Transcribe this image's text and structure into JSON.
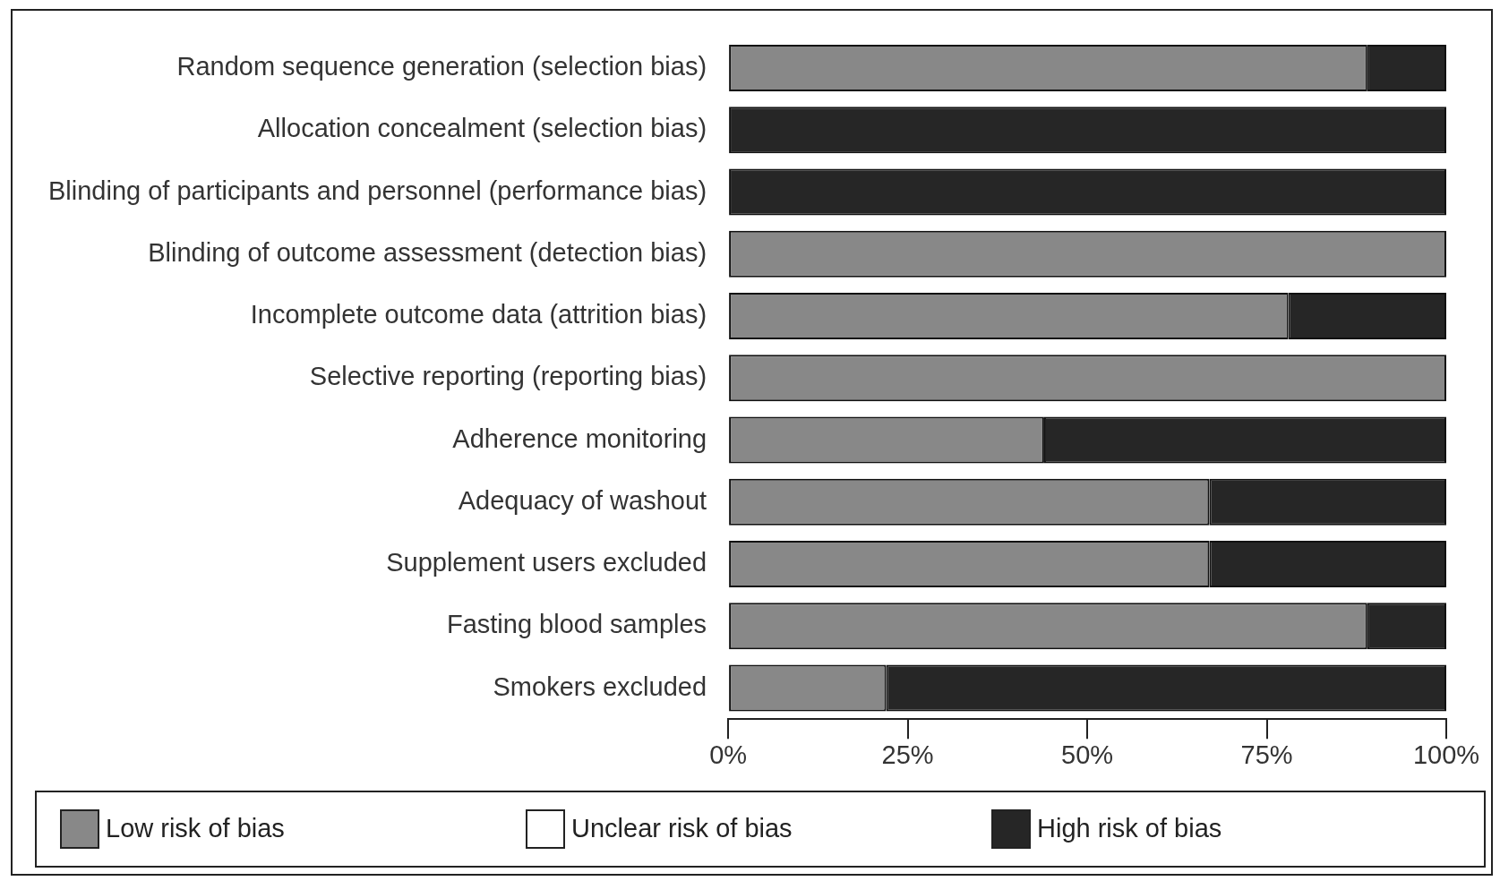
{
  "chart_data": {
    "type": "bar",
    "orientation": "horizontal",
    "stacked": true,
    "categories": [
      "Random sequence generation (selection bias)",
      "Allocation concealment (selection bias)",
      "Blinding of participants and personnel (performance bias)",
      "Blinding of outcome assessment (detection bias)",
      "Incomplete outcome data (attrition bias)",
      "Selective reporting (reporting bias)",
      "Adherence monitoring",
      "Adequacy of washout",
      "Supplement users excluded",
      "Fasting blood samples",
      "Smokers excluded"
    ],
    "series": [
      {
        "name": "Low risk of bias",
        "color": "#888888",
        "values": [
          89,
          0,
          0,
          100,
          78,
          100,
          44,
          67,
          67,
          89,
          22
        ]
      },
      {
        "name": "Unclear risk of bias",
        "color": "#ffffff",
        "values": [
          0,
          0,
          0,
          0,
          0,
          0,
          0,
          0,
          0,
          0,
          0
        ]
      },
      {
        "name": "High risk of bias",
        "color": "#262626",
        "values": [
          11,
          100,
          100,
          0,
          22,
          0,
          56,
          33,
          33,
          11,
          78
        ]
      }
    ],
    "xlim": [
      0,
      100
    ],
    "xticks": [
      {
        "value": 0,
        "label": "0%"
      },
      {
        "value": 25,
        "label": "25%"
      },
      {
        "value": 50,
        "label": "50%"
      },
      {
        "value": 75,
        "label": "75%"
      },
      {
        "value": 100,
        "label": "100%"
      }
    ],
    "grid": false,
    "legend": "bottom"
  }
}
